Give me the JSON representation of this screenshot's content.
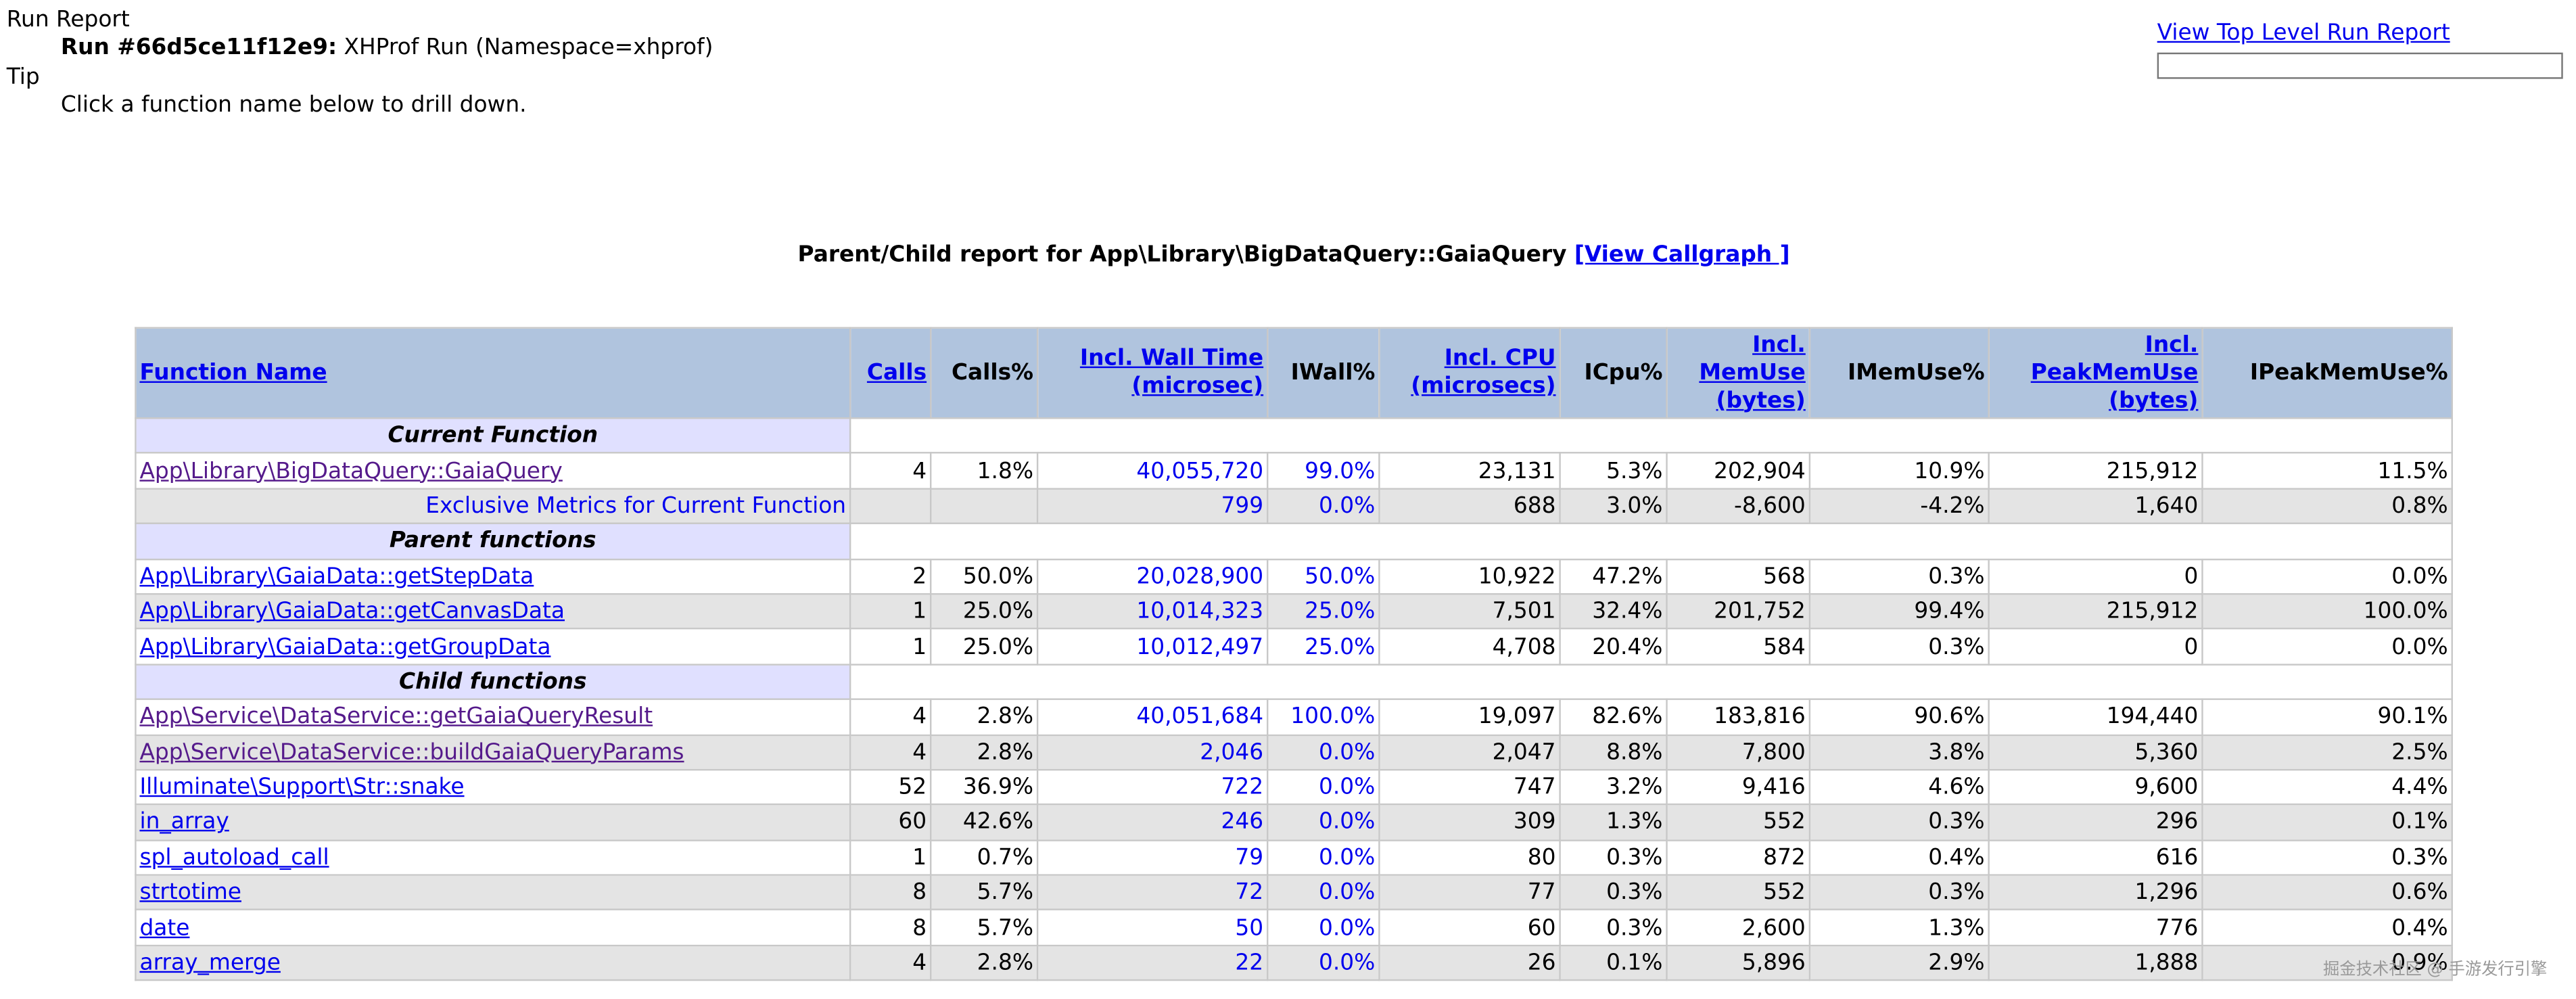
{
  "header": {
    "title": "Run Report",
    "run_label": "Run #66d5ce11f12e9:",
    "run_desc": "XHProf Run (Namespace=xhprof)",
    "tip_label": "Tip",
    "tip": "Click a function name below to drill down.",
    "top_link": "View Top Level Run Report"
  },
  "report": {
    "title": "Parent/Child report for App\\Library\\BigDataQuery::GaiaQuery",
    "callgraph_link": "[View Callgraph ]"
  },
  "table": {
    "headers": [
      {
        "text": "Function Name",
        "link": true
      },
      {
        "text": "Calls",
        "link": true
      },
      {
        "text": "Calls%",
        "link": false
      },
      {
        "text": "Incl. Wall Time (microsec)",
        "link": true
      },
      {
        "text": "IWall%",
        "link": false
      },
      {
        "text": "Incl. CPU (microsecs)",
        "link": true
      },
      {
        "text": "ICpu%",
        "link": false
      },
      {
        "text": "Incl. MemUse (bytes)",
        "link": true
      },
      {
        "text": "IMemUse%",
        "link": false
      },
      {
        "text": "Incl. PeakMemUse (bytes)",
        "link": true
      },
      {
        "text": "IPeakMemUse%",
        "link": false
      }
    ],
    "sections": [
      {
        "title": "Current Function",
        "visited_rows": [
          0
        ],
        "rows": [
          [
            "App\\Library\\BigDataQuery::GaiaQuery",
            "4",
            "1.8%",
            "40,055,720",
            "99.0%",
            "23,131",
            "5.3%",
            "202,904",
            "10.9%",
            "215,912",
            "11.5%"
          ],
          [
            "Exclusive Metrics for Current Function",
            null,
            null,
            "799",
            "0.0%",
            "688",
            "3.0%",
            "-8,600",
            "-4.2%",
            "1,640",
            "0.8%"
          ]
        ]
      },
      {
        "title": "Parent functions",
        "visited_rows": [],
        "rows": [
          [
            "App\\Library\\GaiaData::getStepData",
            "2",
            "50.0%",
            "20,028,900",
            "50.0%",
            "10,922",
            "47.2%",
            "568",
            "0.3%",
            "0",
            "0.0%"
          ],
          [
            "App\\Library\\GaiaData::getCanvasData",
            "1",
            "25.0%",
            "10,014,323",
            "25.0%",
            "7,501",
            "32.4%",
            "201,752",
            "99.4%",
            "215,912",
            "100.0%"
          ],
          [
            "App\\Library\\GaiaData::getGroupData",
            "1",
            "25.0%",
            "10,012,497",
            "25.0%",
            "4,708",
            "20.4%",
            "584",
            "0.3%",
            "0",
            "0.0%"
          ]
        ]
      },
      {
        "title": "Child functions",
        "visited_rows": [
          0,
          1
        ],
        "rows": [
          [
            "App\\Service\\DataService::getGaiaQueryResult",
            "4",
            "2.8%",
            "40,051,684",
            "100.0%",
            "19,097",
            "82.6%",
            "183,816",
            "90.6%",
            "194,440",
            "90.1%"
          ],
          [
            "App\\Service\\DataService::buildGaiaQueryParams",
            "4",
            "2.8%",
            "2,046",
            "0.0%",
            "2,047",
            "8.8%",
            "7,800",
            "3.8%",
            "5,360",
            "2.5%"
          ],
          [
            "Illuminate\\Support\\Str::snake",
            "52",
            "36.9%",
            "722",
            "0.0%",
            "747",
            "3.2%",
            "9,416",
            "4.6%",
            "9,600",
            "4.4%"
          ],
          [
            "in_array",
            "60",
            "42.6%",
            "246",
            "0.0%",
            "309",
            "1.3%",
            "552",
            "0.3%",
            "296",
            "0.1%"
          ],
          [
            "spl_autoload_call",
            "1",
            "0.7%",
            "79",
            "0.0%",
            "80",
            "0.3%",
            "872",
            "0.4%",
            "616",
            "0.3%"
          ],
          [
            "strtotime",
            "8",
            "5.7%",
            "72",
            "0.0%",
            "77",
            "0.3%",
            "552",
            "0.3%",
            "1,296",
            "0.6%"
          ],
          [
            "date",
            "8",
            "5.7%",
            "50",
            "0.0%",
            "60",
            "0.3%",
            "2,600",
            "1.3%",
            "776",
            "0.4%"
          ],
          [
            "array_merge",
            "4",
            "2.8%",
            "22",
            "0.0%",
            "26",
            "0.1%",
            "5,896",
            "2.9%",
            "1,888",
            "0.9%"
          ]
        ]
      }
    ]
  },
  "watermark": "掘金技术社区 @ 手游发行引擎"
}
